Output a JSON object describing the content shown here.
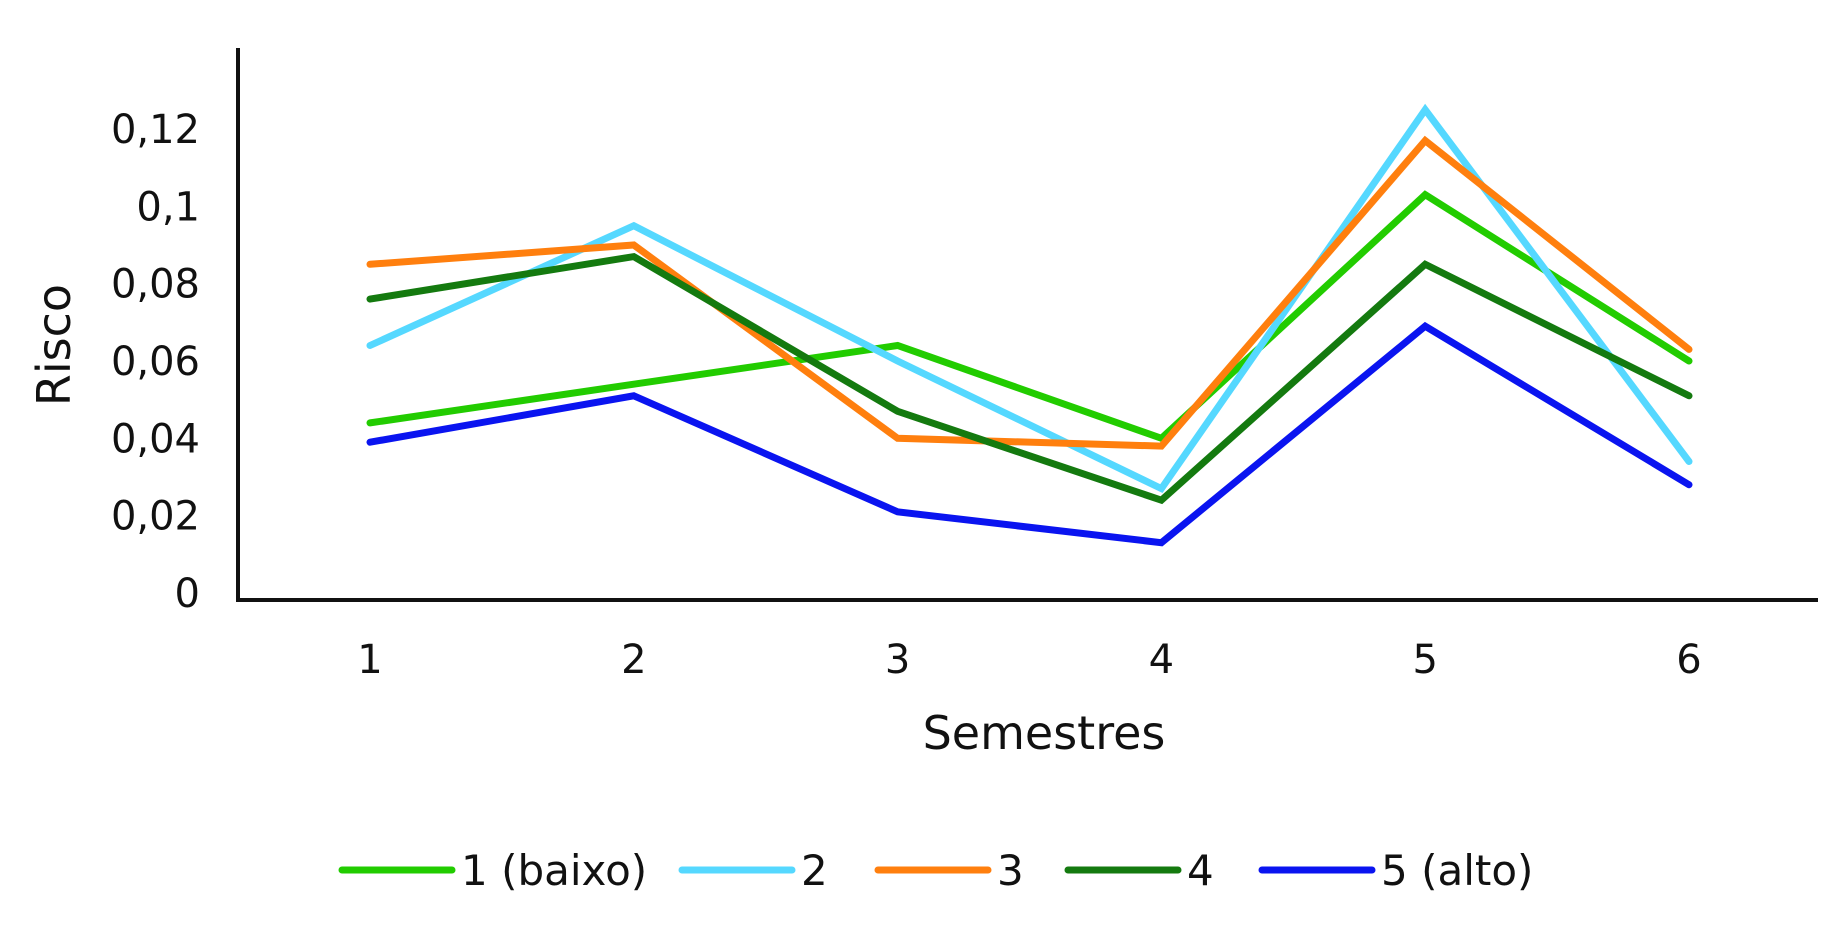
{
  "chart_data": {
    "type": "line",
    "title": "",
    "xlabel": "Semestres",
    "ylabel": "Risco",
    "categories": [
      "1",
      "2",
      "3",
      "4",
      "5",
      "6"
    ],
    "y_ticks": [
      "0",
      "0,02",
      "0,04",
      "0,06",
      "0,08",
      "0,1",
      "0,12"
    ],
    "ylim": [
      0,
      0.14
    ],
    "grid": false,
    "legend_position": "bottom",
    "series": [
      {
        "name": "1 (baixo)",
        "color": "#22cc00",
        "values": [
          0.044,
          0.054,
          0.064,
          0.04,
          0.103,
          0.06
        ]
      },
      {
        "name": "2",
        "color": "#55d8ff",
        "values": [
          0.064,
          0.095,
          0.06,
          0.027,
          0.125,
          0.034
        ]
      },
      {
        "name": "3",
        "color": "#ff7f0e",
        "values": [
          0.085,
          0.09,
          0.04,
          0.038,
          0.117,
          0.063
        ]
      },
      {
        "name": "4",
        "color": "#147a0f",
        "values": [
          0.076,
          0.087,
          0.047,
          0.024,
          0.085,
          0.051
        ]
      },
      {
        "name": "5 (alto)",
        "color": "#0a14f0",
        "values": [
          0.039,
          0.051,
          0.021,
          0.013,
          0.069,
          0.028
        ]
      }
    ]
  }
}
